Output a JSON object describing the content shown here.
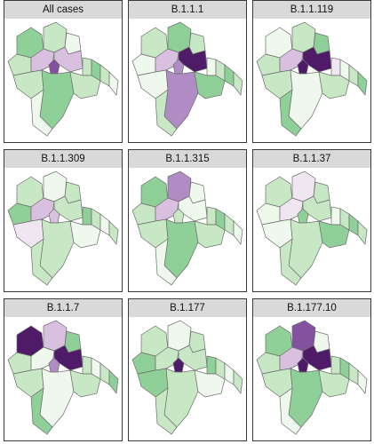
{
  "figure": {
    "type": "faceted choropleth maps",
    "grid": "3 x 3",
    "fill_scale": "green (low) to white to purple (high)",
    "scale_colors": [
      "#4ea564",
      "#8fcf98",
      "#c8e7c4",
      "#eef8ec",
      "#f0e6f2",
      "#d9bfe0",
      "#b18cc4",
      "#84519f",
      "#4f1a68"
    ]
  },
  "chart_data": [
    {
      "type": "choropleth",
      "title": "All cases",
      "highlights": [
        {
          "district": "center-west",
          "level": 2
        },
        {
          "district": "center-core",
          "level": 4
        },
        {
          "district": "center-east",
          "level": 2
        }
      ]
    },
    {
      "type": "choropleth",
      "title": "B.1.1.1",
      "highlights": [
        {
          "district": "south-central",
          "level": 3
        },
        {
          "district": "center-east",
          "level": 5
        },
        {
          "district": "center-core",
          "level": 3
        },
        {
          "district": "center-west",
          "level": 2
        }
      ]
    },
    {
      "type": "choropleth",
      "title": "B.1.1.119",
      "highlights": [
        {
          "district": "center-core",
          "level": 5
        },
        {
          "district": "center-east",
          "level": 5
        },
        {
          "district": "center-west",
          "level": 2
        },
        {
          "district": "center-east2",
          "level": 1
        }
      ]
    },
    {
      "type": "choropleth",
      "title": "B.1.1.309",
      "highlights": [
        {
          "district": "center-core",
          "level": 2
        },
        {
          "district": "center-west",
          "level": 2
        },
        {
          "district": "south-west",
          "level": 1
        }
      ]
    },
    {
      "type": "choropleth",
      "title": "B.1.1.315",
      "highlights": [
        {
          "district": "north-center",
          "level": 3
        },
        {
          "district": "center-west",
          "level": 2
        }
      ]
    },
    {
      "type": "choropleth",
      "title": "B.1.1.37",
      "highlights": [
        {
          "district": "center-west",
          "level": 1
        },
        {
          "district": "north-center",
          "level": 1
        }
      ]
    },
    {
      "type": "choropleth",
      "title": "B.1.1.7",
      "highlights": [
        {
          "district": "north-west",
          "level": 5
        },
        {
          "district": "north-center",
          "level": 2
        },
        {
          "district": "center-east",
          "level": 5
        },
        {
          "district": "center-core",
          "level": 3
        }
      ]
    },
    {
      "type": "choropleth",
      "title": "B.1.177",
      "highlights": [
        {
          "district": "center-core",
          "level": 5
        }
      ]
    },
    {
      "type": "choropleth",
      "title": "B.1.177.10",
      "highlights": [
        {
          "district": "north-center",
          "level": 4
        },
        {
          "district": "center-east",
          "level": 5
        },
        {
          "district": "center-core",
          "level": 5
        },
        {
          "district": "center-west",
          "level": 2
        }
      ]
    }
  ]
}
